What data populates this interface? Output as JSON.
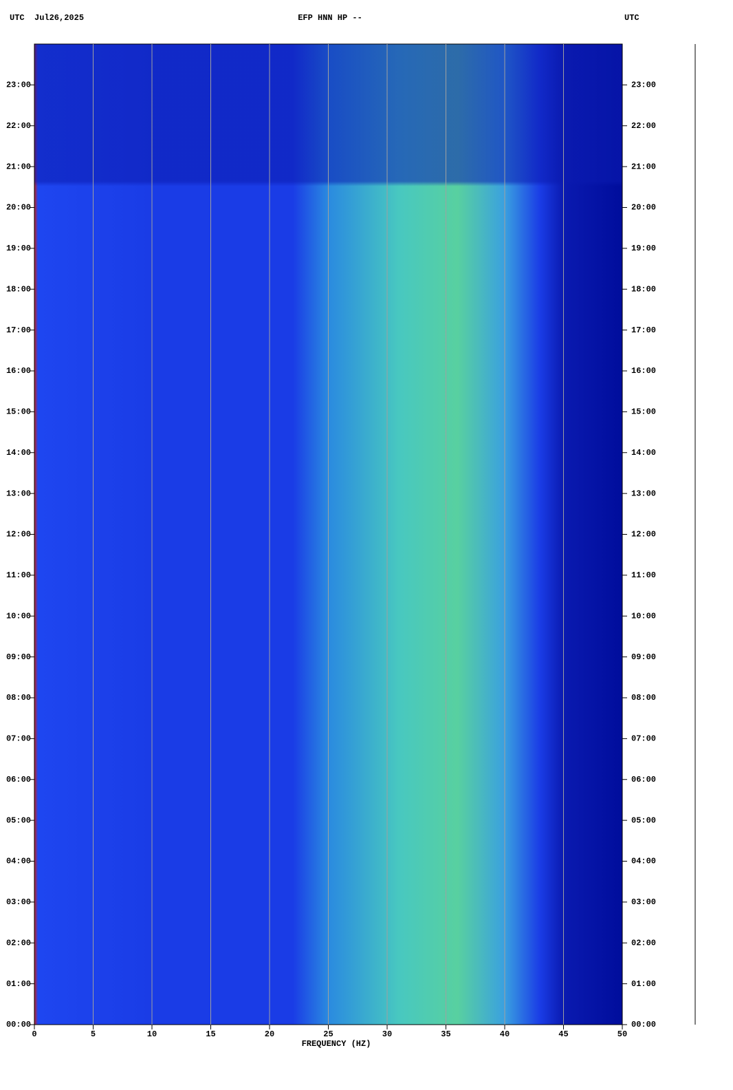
{
  "chart_data": {
    "type": "spectrogram",
    "title": "EFP HNN HP --",
    "left_header": "UTC  Jul26,2025",
    "right_header": "UTC",
    "xlabel": "FREQUENCY (HZ)",
    "xlim": [
      0,
      50
    ],
    "xticks": [
      0,
      5,
      10,
      15,
      20,
      25,
      30,
      35,
      40,
      45,
      50
    ],
    "ylim": [
      0,
      24
    ],
    "yticks": [
      {
        "value": 0,
        "label": "00:00"
      },
      {
        "value": 1,
        "label": "01:00"
      },
      {
        "value": 2,
        "label": "02:00"
      },
      {
        "value": 3,
        "label": "03:00"
      },
      {
        "value": 4,
        "label": "04:00"
      },
      {
        "value": 5,
        "label": "05:00"
      },
      {
        "value": 6,
        "label": "06:00"
      },
      {
        "value": 7,
        "label": "07:00"
      },
      {
        "value": 8,
        "label": "08:00"
      },
      {
        "value": 9,
        "label": "09:00"
      },
      {
        "value": 10,
        "label": "10:00"
      },
      {
        "value": 11,
        "label": "11:00"
      },
      {
        "value": 12,
        "label": "12:00"
      },
      {
        "value": 13,
        "label": "13:00"
      },
      {
        "value": 14,
        "label": "14:00"
      },
      {
        "value": 15,
        "label": "15:00"
      },
      {
        "value": 16,
        "label": "16:00"
      },
      {
        "value": 17,
        "label": "17:00"
      },
      {
        "value": 18,
        "label": "18:00"
      },
      {
        "value": 19,
        "label": "19:00"
      },
      {
        "value": 20,
        "label": "20:00"
      },
      {
        "value": 21,
        "label": "21:00"
      },
      {
        "value": 22,
        "label": "22:00"
      },
      {
        "value": 23,
        "label": "23:00"
      }
    ],
    "grid": true,
    "grid_color": "#a0a0a0"
  }
}
